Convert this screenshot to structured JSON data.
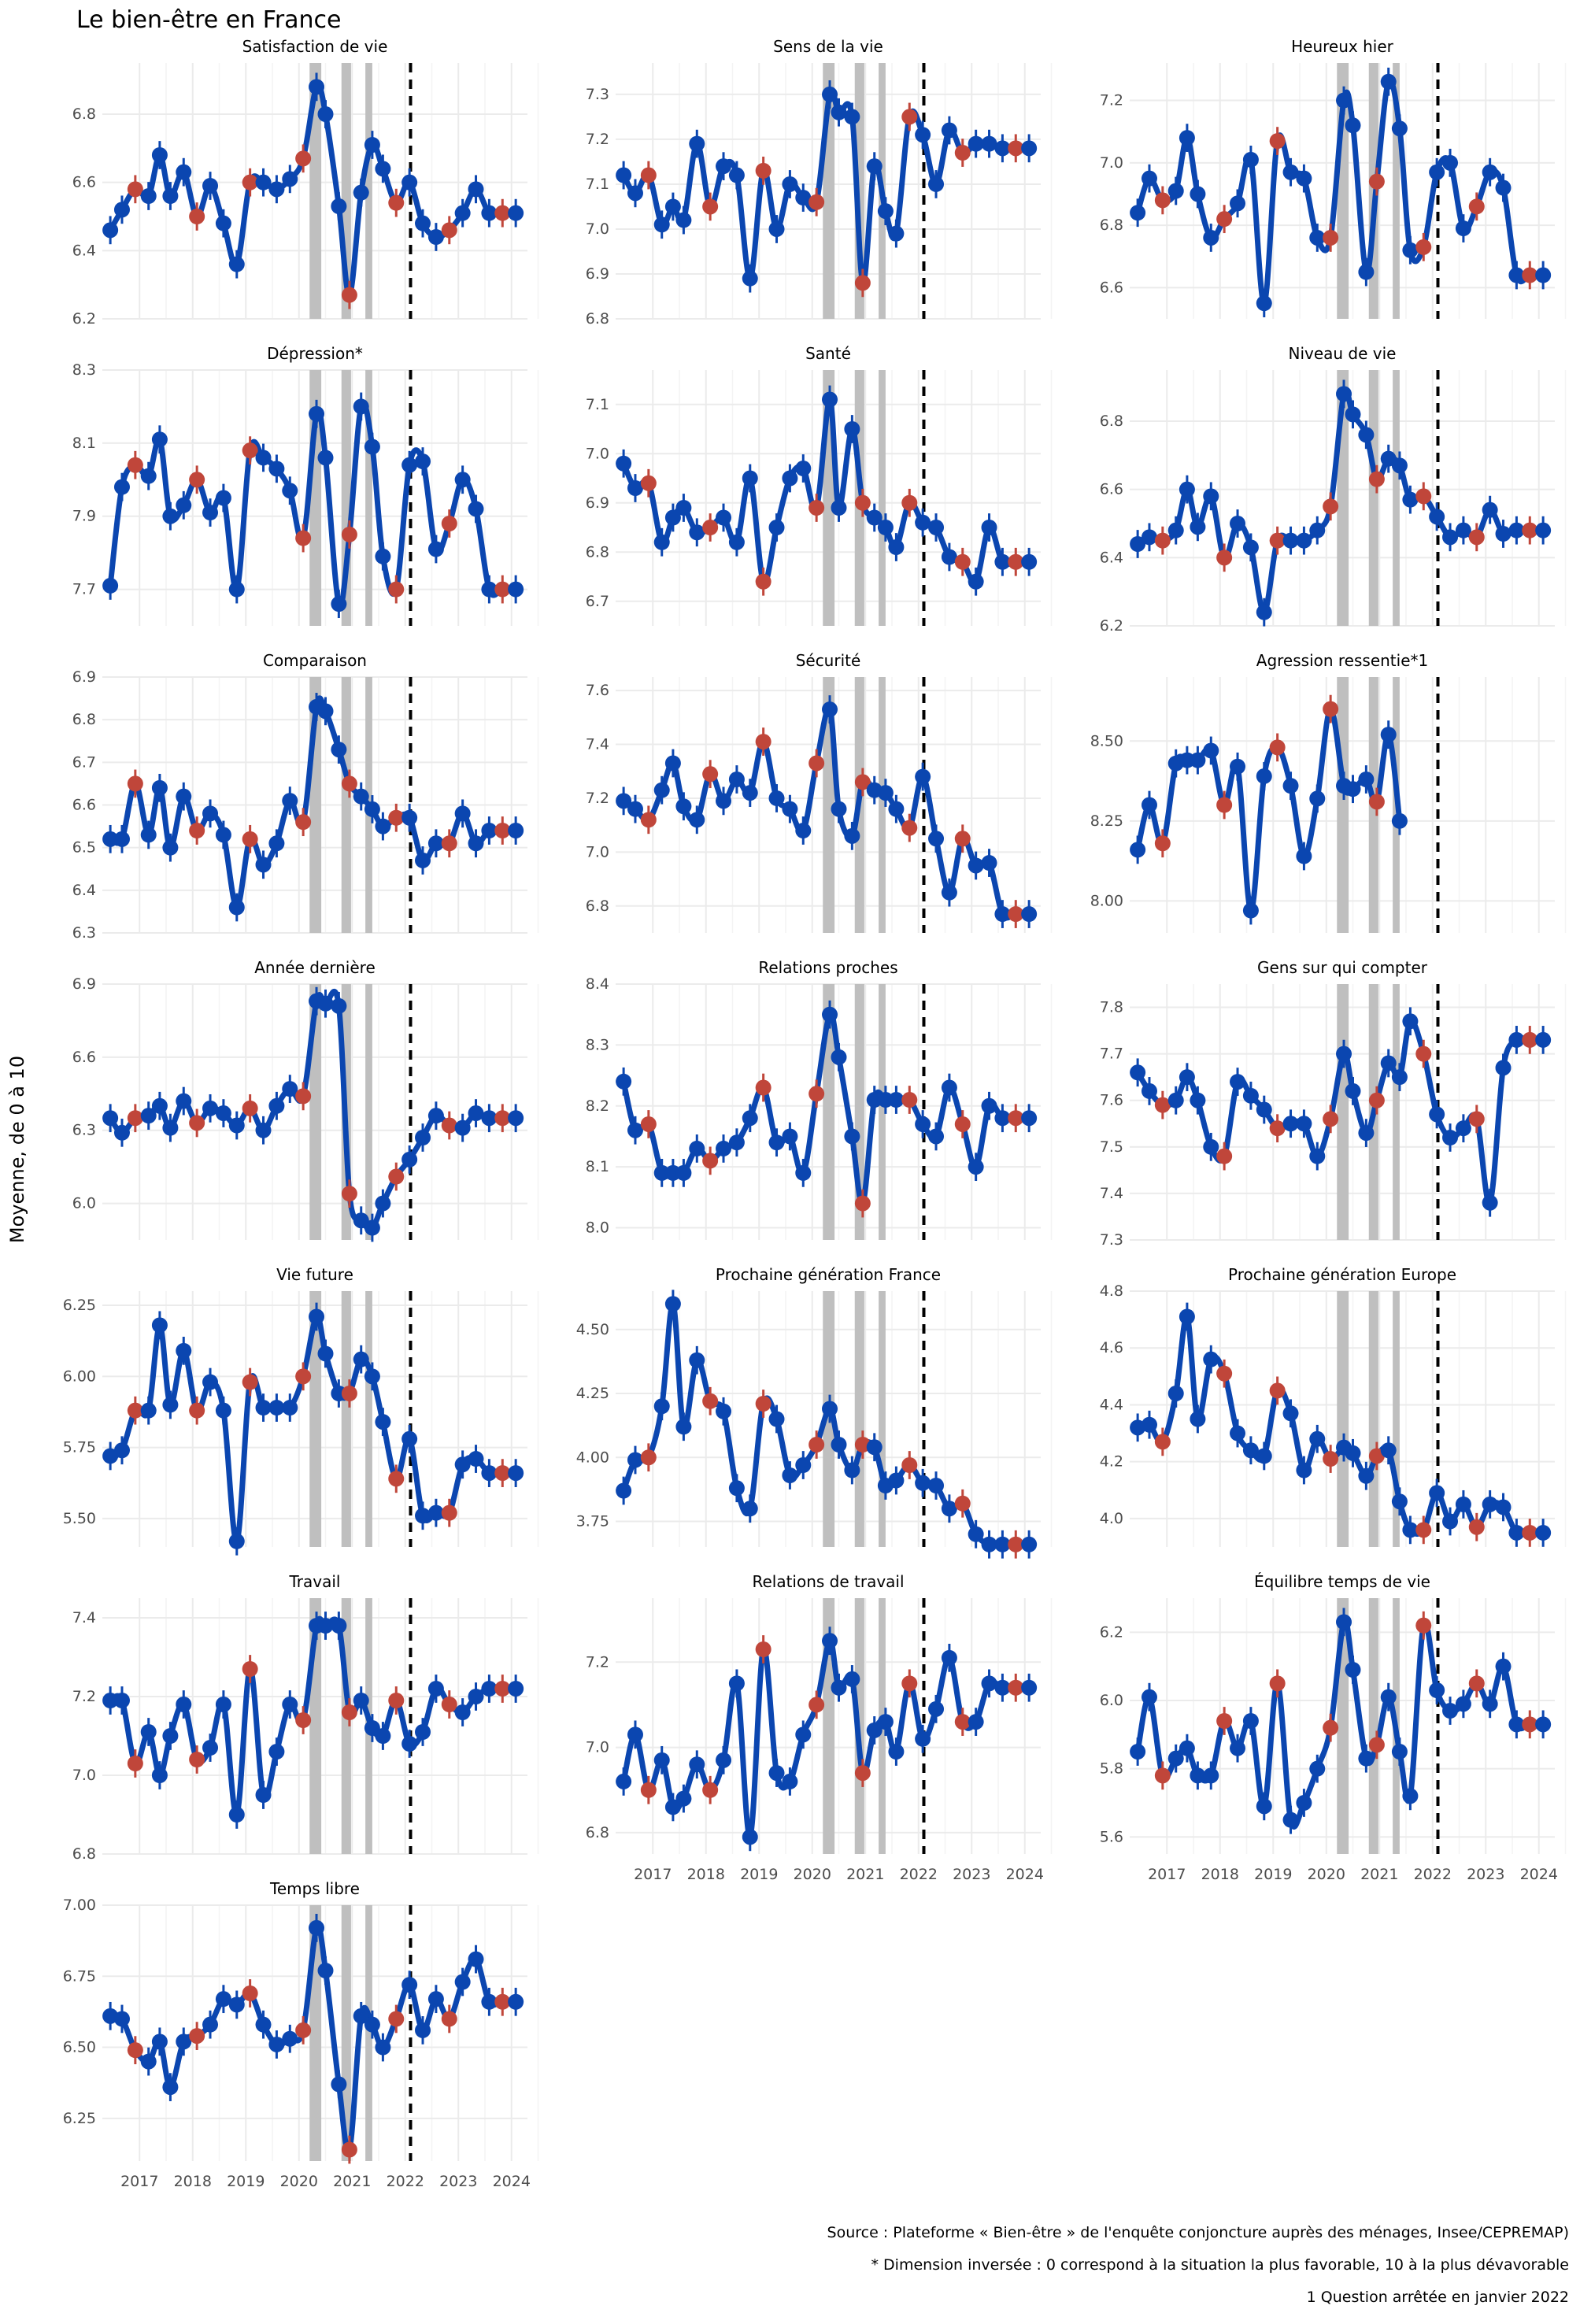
{
  "title": "Le bien-être en France",
  "ylabel": "Moyenne, de 0 à 10",
  "captions": [
    "Source : Plateforme « Bien-être » de l'enquête conjoncture auprès des ménages, Insee/CEPREMAP)",
    "* Dimension inversée : 0 correspond à la situation la plus favorable, 10 à la plus dévavorable",
    "1 Question arrêtée en janvier 2022"
  ],
  "colors": {
    "line": "#0b46b0",
    "red": "#c0463a",
    "blue_point": "#0b46b0",
    "shade": "#bfbfbf",
    "grid": "#ebebeb"
  },
  "chart_data": {
    "type": "line",
    "x_ticks": [
      2017,
      2018,
      2019,
      2020,
      2021,
      2022,
      2023,
      2024
    ],
    "x_range": [
      2016.3,
      2024.3
    ],
    "dates": [
      2016.45,
      2016.67,
      2016.92,
      2017.17,
      2017.38,
      2017.58,
      2017.83,
      2018.08,
      2018.33,
      2018.58,
      2018.83,
      2019.08,
      2019.33,
      2019.58,
      2019.83,
      2020.08,
      2020.33,
      2020.5,
      2020.75,
      2020.95,
      2021.17,
      2021.38,
      2021.58,
      2021.83,
      2022.08,
      2022.33,
      2022.58,
      2022.83,
      2023.08,
      2023.33,
      2023.58,
      2023.83,
      2024.08
    ],
    "red_indices": [
      2,
      7,
      11,
      15,
      19,
      23,
      27,
      31
    ],
    "shaded_periods": [
      [
        2020.2,
        2020.42
      ],
      [
        2020.8,
        2020.98
      ],
      [
        2021.25,
        2021.38
      ]
    ],
    "vline": 2022.1,
    "panels": [
      {
        "title": "Satisfaction de vie",
        "ylim": [
          6.2,
          6.95
        ],
        "yticks": [
          6.2,
          6.4,
          6.6,
          6.8
        ],
        "values": [
          6.46,
          6.52,
          6.58,
          6.56,
          6.68,
          6.56,
          6.63,
          6.5,
          6.59,
          6.48,
          6.36,
          6.6,
          6.6,
          6.58,
          6.61,
          6.67,
          6.88,
          6.8,
          6.53,
          6.27,
          6.57,
          6.71,
          6.64,
          6.54,
          6.6,
          6.48,
          6.44,
          6.46,
          6.51,
          6.58,
          6.51,
          6.51,
          6.51
        ]
      },
      {
        "title": "Sens de la vie",
        "ylim": [
          6.8,
          7.37
        ],
        "yticks": [
          6.8,
          6.9,
          7.0,
          7.1,
          7.2,
          7.3
        ],
        "values": [
          7.12,
          7.08,
          7.12,
          7.01,
          7.05,
          7.02,
          7.19,
          7.05,
          7.14,
          7.12,
          6.89,
          7.13,
          7.0,
          7.1,
          7.07,
          7.06,
          7.3,
          7.26,
          7.25,
          6.88,
          7.14,
          7.04,
          6.99,
          7.25,
          7.21,
          7.1,
          7.22,
          7.17,
          7.19,
          7.19,
          7.18,
          7.18,
          7.18
        ]
      },
      {
        "title": "Heureux hier",
        "ylim": [
          6.5,
          7.32
        ],
        "yticks": [
          6.6,
          6.8,
          7.0,
          7.2
        ],
        "values": [
          6.84,
          6.95,
          6.88,
          6.91,
          7.08,
          6.9,
          6.76,
          6.82,
          6.87,
          7.01,
          6.55,
          7.07,
          6.97,
          6.95,
          6.76,
          6.76,
          7.2,
          7.12,
          6.65,
          6.94,
          7.26,
          7.11,
          6.72,
          6.73,
          6.97,
          7.0,
          6.79,
          6.86,
          6.97,
          6.92,
          6.64,
          6.64,
          6.64
        ]
      },
      {
        "title": "Dépression*",
        "ylim": [
          7.6,
          8.3
        ],
        "yticks": [
          7.7,
          7.9,
          8.1,
          8.3
        ],
        "values": [
          7.71,
          7.98,
          8.04,
          8.01,
          8.11,
          7.9,
          7.93,
          8.0,
          7.91,
          7.95,
          7.7,
          8.08,
          8.06,
          8.03,
          7.97,
          7.84,
          8.18,
          8.06,
          7.66,
          7.85,
          8.2,
          8.09,
          7.79,
          7.7,
          8.04,
          8.05,
          7.81,
          7.88,
          8.0,
          7.92,
          7.7,
          7.7,
          7.7
        ]
      },
      {
        "title": "Santé",
        "ylim": [
          6.65,
          7.17
        ],
        "yticks": [
          6.7,
          6.8,
          6.9,
          7.0,
          7.1
        ],
        "values": [
          6.98,
          6.93,
          6.94,
          6.82,
          6.87,
          6.89,
          6.84,
          6.85,
          6.87,
          6.82,
          6.95,
          6.74,
          6.85,
          6.95,
          6.97,
          6.89,
          7.11,
          6.89,
          7.05,
          6.9,
          6.87,
          6.85,
          6.81,
          6.9,
          6.86,
          6.85,
          6.79,
          6.78,
          6.74,
          6.85,
          6.78,
          6.78,
          6.78
        ]
      },
      {
        "title": "Niveau de vie",
        "ylim": [
          6.2,
          6.95
        ],
        "yticks": [
          6.2,
          6.4,
          6.6,
          6.8
        ],
        "values": [
          6.44,
          6.46,
          6.45,
          6.48,
          6.6,
          6.49,
          6.58,
          6.4,
          6.5,
          6.43,
          6.24,
          6.45,
          6.45,
          6.45,
          6.48,
          6.55,
          6.88,
          6.82,
          6.76,
          6.63,
          6.69,
          6.67,
          6.57,
          6.58,
          6.52,
          6.46,
          6.48,
          6.46,
          6.54,
          6.47,
          6.48,
          6.48,
          6.48
        ]
      },
      {
        "title": "Comparaison",
        "ylim": [
          6.3,
          6.9
        ],
        "yticks": [
          6.3,
          6.4,
          6.5,
          6.6,
          6.7,
          6.8,
          6.9
        ],
        "values": [
          6.52,
          6.52,
          6.65,
          6.53,
          6.64,
          6.5,
          6.62,
          6.54,
          6.58,
          6.53,
          6.36,
          6.52,
          6.46,
          6.51,
          6.61,
          6.56,
          6.83,
          6.82,
          6.73,
          6.65,
          6.62,
          6.59,
          6.55,
          6.57,
          6.57,
          6.47,
          6.51,
          6.51,
          6.58,
          6.51,
          6.54,
          6.54,
          6.54
        ]
      },
      {
        "title": "Sécurité",
        "ylim": [
          6.7,
          7.65
        ],
        "yticks": [
          6.8,
          7.0,
          7.2,
          7.4,
          7.6
        ],
        "values": [
          7.19,
          7.16,
          7.12,
          7.23,
          7.33,
          7.17,
          7.12,
          7.29,
          7.19,
          7.27,
          7.22,
          7.41,
          7.2,
          7.16,
          7.08,
          7.33,
          7.53,
          7.16,
          7.06,
          7.26,
          7.23,
          7.22,
          7.16,
          7.09,
          7.28,
          7.05,
          6.85,
          7.05,
          6.95,
          6.96,
          6.77,
          6.77,
          6.77
        ]
      },
      {
        "title": "Agression ressentie*1",
        "ylim": [
          7.9,
          8.7
        ],
        "yticks": [
          8.0,
          8.25,
          8.5
        ],
        "values": [
          8.16,
          8.3,
          8.18,
          8.43,
          8.44,
          8.44,
          8.47,
          8.3,
          8.42,
          7.97,
          8.39,
          8.48,
          8.36,
          8.14,
          8.32,
          8.6,
          8.36,
          8.35,
          8.38,
          8.31,
          8.52,
          8.25
        ]
      },
      {
        "title": "Année dernière",
        "ylim": [
          5.85,
          6.9
        ],
        "yticks": [
          6.0,
          6.3,
          6.6,
          6.9
        ],
        "values": [
          6.35,
          6.29,
          6.35,
          6.36,
          6.4,
          6.31,
          6.42,
          6.33,
          6.39,
          6.37,
          6.32,
          6.39,
          6.3,
          6.4,
          6.47,
          6.44,
          6.83,
          6.82,
          6.81,
          6.04,
          5.93,
          5.9,
          6.0,
          6.11,
          6.18,
          6.27,
          6.36,
          6.32,
          6.31,
          6.37,
          6.35,
          6.35,
          6.35
        ]
      },
      {
        "title": "Relations proches",
        "ylim": [
          7.98,
          8.4
        ],
        "yticks": [
          8.0,
          8.1,
          8.2,
          8.3,
          8.4
        ],
        "values": [
          8.24,
          8.16,
          8.17,
          8.09,
          8.09,
          8.09,
          8.13,
          8.11,
          8.13,
          8.14,
          8.18,
          8.23,
          8.14,
          8.15,
          8.09,
          8.22,
          8.35,
          8.28,
          8.15,
          8.04,
          8.21,
          8.21,
          8.21,
          8.21,
          8.17,
          8.15,
          8.23,
          8.17,
          8.1,
          8.2,
          8.18,
          8.18,
          8.18
        ]
      },
      {
        "title": "Gens sur qui compter",
        "ylim": [
          7.3,
          7.85
        ],
        "yticks": [
          7.3,
          7.4,
          7.5,
          7.6,
          7.7,
          7.8
        ],
        "values": [
          7.66,
          7.62,
          7.59,
          7.6,
          7.65,
          7.6,
          7.5,
          7.48,
          7.64,
          7.61,
          7.58,
          7.54,
          7.55,
          7.55,
          7.48,
          7.56,
          7.7,
          7.62,
          7.53,
          7.6,
          7.68,
          7.65,
          7.77,
          7.7,
          7.57,
          7.52,
          7.54,
          7.56,
          7.38,
          7.67,
          7.73,
          7.73,
          7.73
        ]
      },
      {
        "title": "Vie future",
        "ylim": [
          5.4,
          6.3
        ],
        "yticks": [
          5.5,
          5.75,
          6.0,
          6.25
        ],
        "values": [
          5.72,
          5.74,
          5.88,
          5.88,
          6.18,
          5.9,
          6.09,
          5.88,
          5.98,
          5.88,
          5.42,
          5.98,
          5.89,
          5.89,
          5.89,
          6.0,
          6.21,
          6.08,
          5.94,
          5.94,
          6.06,
          6.0,
          5.84,
          5.64,
          5.78,
          5.51,
          5.52,
          5.52,
          5.69,
          5.71,
          5.66,
          5.66,
          5.66
        ]
      },
      {
        "title": "Prochaine génération France",
        "ylim": [
          3.65,
          4.65
        ],
        "yticks": [
          3.75,
          4.0,
          4.25,
          4.5
        ],
        "values": [
          3.87,
          3.99,
          4.0,
          4.2,
          4.6,
          4.12,
          4.38,
          4.22,
          4.18,
          3.88,
          3.8,
          4.21,
          4.15,
          3.93,
          3.97,
          4.05,
          4.19,
          4.05,
          3.95,
          4.05,
          4.04,
          3.89,
          3.91,
          3.97,
          3.9,
          3.89,
          3.8,
          3.82,
          3.7,
          3.66,
          3.66,
          3.66,
          3.66
        ]
      },
      {
        "title": "Prochaine génération Europe",
        "ylim": [
          3.9,
          4.8
        ],
        "yticks": [
          4.0,
          4.2,
          4.4,
          4.6,
          4.8
        ],
        "values": [
          4.32,
          4.33,
          4.27,
          4.44,
          4.71,
          4.35,
          4.56,
          4.51,
          4.3,
          4.24,
          4.22,
          4.45,
          4.37,
          4.17,
          4.28,
          4.21,
          4.25,
          4.23,
          4.15,
          4.22,
          4.24,
          4.06,
          3.96,
          3.96,
          4.09,
          3.99,
          4.05,
          3.97,
          4.05,
          4.04,
          3.95,
          3.95,
          3.95
        ]
      },
      {
        "title": "Travail",
        "ylim": [
          6.8,
          7.45
        ],
        "yticks": [
          6.8,
          7.0,
          7.2,
          7.4
        ],
        "values": [
          7.19,
          7.19,
          7.03,
          7.11,
          7.0,
          7.1,
          7.18,
          7.04,
          7.07,
          7.18,
          6.9,
          7.27,
          6.95,
          7.06,
          7.18,
          7.14,
          7.38,
          7.38,
          7.38,
          7.16,
          7.19,
          7.12,
          7.1,
          7.19,
          7.08,
          7.11,
          7.22,
          7.18,
          7.16,
          7.2,
          7.22,
          7.22,
          7.22
        ]
      },
      {
        "title": "Relations de travail",
        "ylim": [
          6.75,
          7.35
        ],
        "yticks": [
          6.8,
          7.0,
          7.2
        ],
        "values": [
          6.92,
          7.03,
          6.9,
          6.97,
          6.86,
          6.88,
          6.96,
          6.9,
          6.97,
          7.15,
          6.79,
          7.23,
          6.94,
          6.92,
          7.03,
          7.1,
          7.25,
          7.14,
          7.16,
          6.94,
          7.04,
          7.06,
          6.99,
          7.15,
          7.02,
          7.09,
          7.21,
          7.06,
          7.06,
          7.15,
          7.14,
          7.14,
          7.14
        ]
      },
      {
        "title": "Équilibre temps de vie",
        "ylim": [
          5.55,
          6.3
        ],
        "yticks": [
          5.6,
          5.8,
          6.0,
          6.2
        ],
        "values": [
          5.85,
          6.01,
          5.78,
          5.83,
          5.86,
          5.78,
          5.78,
          5.94,
          5.86,
          5.94,
          5.69,
          6.05,
          5.65,
          5.7,
          5.8,
          5.92,
          6.23,
          6.09,
          5.83,
          5.87,
          6.01,
          5.85,
          5.72,
          6.22,
          6.03,
          5.97,
          5.99,
          6.05,
          5.99,
          6.1,
          5.93,
          5.93,
          5.93
        ]
      },
      {
        "title": "Temps libre",
        "ylim": [
          6.1,
          7.0
        ],
        "yticks": [
          6.25,
          6.5,
          6.75,
          7.0
        ],
        "values": [
          6.61,
          6.6,
          6.49,
          6.45,
          6.52,
          6.36,
          6.52,
          6.54,
          6.58,
          6.67,
          6.65,
          6.69,
          6.58,
          6.51,
          6.53,
          6.56,
          6.92,
          6.77,
          6.37,
          6.14,
          6.61,
          6.58,
          6.5,
          6.6,
          6.72,
          6.56,
          6.67,
          6.6,
          6.73,
          6.81,
          6.66,
          6.66,
          6.66
        ]
      }
    ]
  }
}
